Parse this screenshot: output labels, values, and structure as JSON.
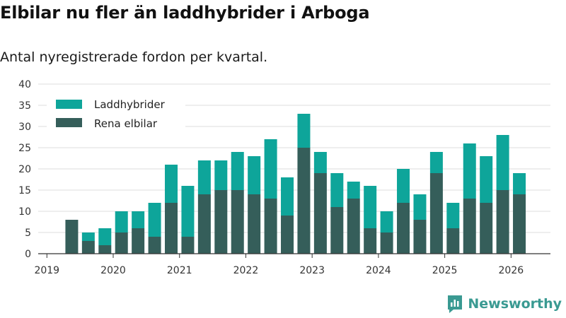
{
  "title": "Elbilar nu fler än laddhybrider i Arboga",
  "subtitle": "Antal nyregistrerade fordon per kvartal.",
  "brand": {
    "name": "Newsworthy",
    "icon": "newsworthy-logo-icon"
  },
  "colors": {
    "laddhybrider": "#0ea59a",
    "elbilar": "#355e5a",
    "grid": "#dddddd",
    "axis": "#333333",
    "brand": "#3a9a92"
  },
  "chart_data": {
    "type": "bar",
    "stacked": true,
    "ylim": [
      0,
      40
    ],
    "yticks": [
      0,
      5,
      10,
      15,
      20,
      25,
      30,
      35,
      40
    ],
    "xtick_labels": [
      "2019",
      "2020",
      "2021",
      "2022",
      "2023",
      "2024",
      "2025",
      "2026"
    ],
    "legend_position": "top-left",
    "grid": true,
    "categories": [
      "2019 K1",
      "2019 K2",
      "2019 K3",
      "2019 K4",
      "2020 K1",
      "2020 K2",
      "2020 K3",
      "2020 K4",
      "2021 K1",
      "2021 K2",
      "2021 K3",
      "2021 K4",
      "2022 K1",
      "2022 K2",
      "2022 K3",
      "2022 K4",
      "2023 K1",
      "2023 K2",
      "2023 K3",
      "2023 K4",
      "2024 K1",
      "2024 K2",
      "2024 K3",
      "2024 K4",
      "2025 K1",
      "2025 K2",
      "2025 K3",
      "2025 K4",
      "2026 K1"
    ],
    "series": [
      {
        "name": "Rena elbilar",
        "values": [
          0,
          8,
          3,
          2,
          5,
          6,
          4,
          12,
          4,
          14,
          15,
          15,
          14,
          13,
          9,
          25,
          19,
          11,
          13,
          6,
          5,
          12,
          8,
          19,
          6,
          13,
          12,
          15,
          14
        ]
      },
      {
        "name": "Laddhybrider",
        "values": [
          0,
          0,
          2,
          4,
          5,
          4,
          8,
          9,
          12,
          8,
          7,
          9,
          9,
          14,
          9,
          8,
          5,
          8,
          4,
          10,
          5,
          8,
          6,
          5,
          6,
          13,
          11,
          13,
          5
        ]
      }
    ]
  }
}
